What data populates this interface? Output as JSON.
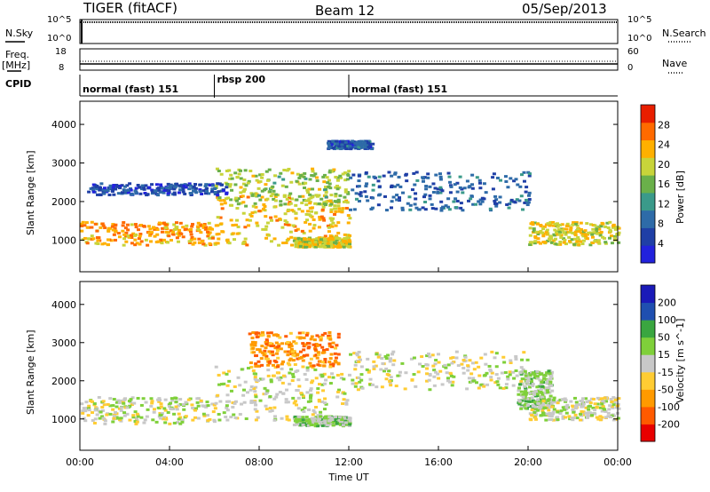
{
  "header": {
    "title": "TIGER (fitACF)",
    "beam": "Beam 12",
    "date": "05/Sep/2013"
  },
  "top_panels": {
    "nsky_label": "N.Sky",
    "nsky_ticks": [
      "10^5",
      "10^0"
    ],
    "nsearch_label": "N.Search",
    "nsearch_ticks": [
      "10^5",
      "10^0"
    ],
    "freq_label": "Freq.",
    "freq_unit": "[MHz]",
    "freq_ticks": [
      "18",
      "8"
    ],
    "nave_label": "Nave",
    "nave_ticks": [
      "60",
      "0"
    ],
    "cpid_label": "CPID"
  },
  "cpid_segments": [
    {
      "label": "normal (fast) 151",
      "start_hour": 0,
      "end_hour": 6
    },
    {
      "label": "rbsp 200",
      "start_hour": 6,
      "end_hour": 12
    },
    {
      "label": "normal (fast) 151",
      "start_hour": 12,
      "end_hour": 24
    }
  ],
  "chart_data": [
    {
      "type": "heatmap",
      "name": "power-panel",
      "ylabel": "Slant Range [km]",
      "xlabel": "Time UT",
      "x_ticks": [
        "00:00",
        "04:00",
        "08:00",
        "12:00",
        "16:00",
        "20:00",
        "00:00"
      ],
      "xlim_hours": [
        0,
        24
      ],
      "y_ticks": [
        1000,
        2000,
        3000,
        4000
      ],
      "ylim_km": [
        180,
        4600
      ],
      "colorbar": {
        "label": "Power [dB]",
        "ticks": [
          "28",
          "24",
          "20",
          "16",
          "12",
          "8",
          "4"
        ],
        "range": [
          0,
          32
        ],
        "colors": [
          "#2222dd",
          "#1f3fa6",
          "#2e6ba8",
          "#3a9a8a",
          "#6ab04a",
          "#c8d43a",
          "#ffb000",
          "#ff6a00",
          "#e81e00"
        ]
      },
      "bands": [
        {
          "t0": 0,
          "t1": 6,
          "r0": 900,
          "r1": 1500,
          "level": 24
        },
        {
          "t0": 6,
          "t1": 12,
          "r0": 900,
          "r1": 2200,
          "level": 22
        },
        {
          "t0": 6,
          "t1": 12,
          "r0": 1900,
          "r1": 2900,
          "level": 18
        },
        {
          "t0": 0.3,
          "t1": 6.5,
          "r0": 2200,
          "r1": 2500,
          "level": 6
        },
        {
          "t0": 9.5,
          "t1": 12,
          "r0": 850,
          "r1": 1100,
          "level": 20
        },
        {
          "t0": 11,
          "t1": 13,
          "r0": 3400,
          "r1": 3600,
          "level": 7
        },
        {
          "t0": 12,
          "t1": 20,
          "r0": 1800,
          "r1": 2800,
          "level": 8
        },
        {
          "t0": 20,
          "t1": 24,
          "r0": 900,
          "r1": 1500,
          "level": 20
        }
      ]
    },
    {
      "type": "heatmap",
      "name": "velocity-panel",
      "ylabel": "Slant Range [km]",
      "xlabel": "Time UT",
      "x_ticks": [
        "00:00",
        "04:00",
        "08:00",
        "12:00",
        "16:00",
        "20:00",
        "00:00"
      ],
      "xlim_hours": [
        0,
        24
      ],
      "y_ticks": [
        1000,
        2000,
        3000,
        4000
      ],
      "ylim_km": [
        180,
        4600
      ],
      "colorbar": {
        "label": "Velocity [m s^-1]",
        "ticks": [
          "200",
          "100",
          "50",
          "15",
          "-15",
          "-50",
          "-100",
          "-200"
        ],
        "range": [
          -250,
          250
        ],
        "colors": [
          "#e80000",
          "#ff5a00",
          "#ff9a00",
          "#ffcc33",
          "#c8c8c8",
          "#7fd03a",
          "#3aa640",
          "#1f4fb0",
          "#1a1ab8"
        ]
      },
      "bands": [
        {
          "t0": 0,
          "t1": 6,
          "r0": 900,
          "r1": 1600,
          "level": 0
        },
        {
          "t0": 6,
          "t1": 12,
          "r0": 1000,
          "r1": 2400,
          "level": 0
        },
        {
          "t0": 7.5,
          "t1": 11.5,
          "r0": 2400,
          "r1": 3300,
          "level": -120
        },
        {
          "t0": 9.5,
          "t1": 12,
          "r0": 850,
          "r1": 1100,
          "level": 40
        },
        {
          "t0": 12,
          "t1": 20,
          "r0": 1800,
          "r1": 2800,
          "level": 0
        },
        {
          "t0": 19.5,
          "t1": 21,
          "r0": 1300,
          "r1": 2300,
          "level": 40
        },
        {
          "t0": 20,
          "t1": 24,
          "r0": 1000,
          "r1": 1600,
          "level": 0
        }
      ]
    }
  ]
}
